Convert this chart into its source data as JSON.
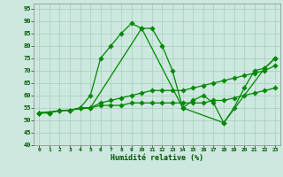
{
  "title": "",
  "xlabel": "Humidité relative (%)",
  "bg_color": "#cce8df",
  "grid_color": "#aaccbb",
  "line_color": "#008800",
  "xlim": [
    -0.5,
    23.5
  ],
  "ylim": [
    40,
    97
  ],
  "yticks": [
    40,
    45,
    50,
    55,
    60,
    65,
    70,
    75,
    80,
    85,
    90,
    95
  ],
  "xticks": [
    0,
    1,
    2,
    3,
    4,
    5,
    6,
    7,
    8,
    9,
    10,
    11,
    12,
    13,
    14,
    15,
    16,
    17,
    18,
    19,
    20,
    21,
    22,
    23
  ],
  "series": [
    {
      "x": [
        0,
        1,
        2,
        3,
        4,
        5,
        6,
        7,
        8,
        9,
        10,
        11,
        12,
        13,
        14,
        15,
        16,
        17,
        18,
        19,
        20,
        21,
        22,
        23
      ],
      "y": [
        53,
        53,
        54,
        54,
        55,
        60,
        75,
        80,
        85,
        89,
        87,
        87,
        80,
        70,
        55,
        58,
        60,
        57,
        49,
        55,
        63,
        70,
        71,
        75
      ]
    },
    {
      "x": [
        0,
        1,
        2,
        3,
        4,
        5,
        6,
        7,
        8,
        9,
        10,
        11,
        12,
        13,
        14,
        15,
        16,
        17,
        18,
        19,
        20,
        21,
        22,
        23
      ],
      "y": [
        53,
        53,
        54,
        54,
        55,
        55,
        57,
        58,
        59,
        60,
        61,
        62,
        62,
        62,
        62,
        63,
        64,
        65,
        66,
        67,
        68,
        69,
        70,
        72
      ]
    },
    {
      "x": [
        0,
        1,
        2,
        3,
        4,
        5,
        6,
        7,
        8,
        9,
        10,
        11,
        12,
        13,
        14,
        15,
        16,
        17,
        18,
        19,
        20,
        21,
        22,
        23
      ],
      "y": [
        53,
        53,
        54,
        54,
        55,
        55,
        56,
        56,
        56,
        57,
        57,
        57,
        57,
        57,
        57,
        57,
        57,
        58,
        58,
        59,
        60,
        61,
        62,
        63
      ]
    },
    {
      "x": [
        0,
        5,
        10,
        14,
        18,
        22,
        23
      ],
      "y": [
        53,
        55,
        87,
        55,
        49,
        71,
        75
      ]
    }
  ]
}
